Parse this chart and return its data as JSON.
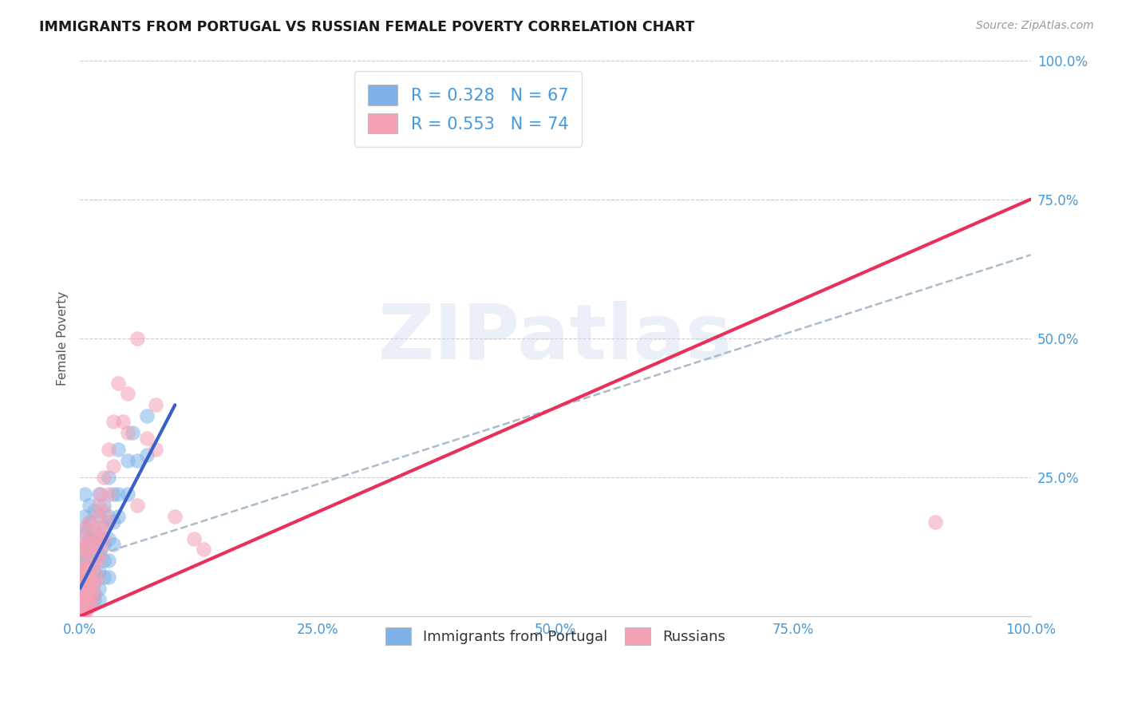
{
  "title": "IMMIGRANTS FROM PORTUGAL VS RUSSIAN FEMALE POVERTY CORRELATION CHART",
  "source": "Source: ZipAtlas.com",
  "ylabel": "Female Poverty",
  "xlim": [
    0.0,
    100.0
  ],
  "ylim": [
    0.0,
    100.0
  ],
  "xtick_positions": [
    0.0,
    25.0,
    50.0,
    75.0,
    100.0
  ],
  "xtick_labels": [
    "0.0%",
    "25.0%",
    "50.0%",
    "75.0%",
    "100.0%"
  ],
  "right_ytick_positions": [
    25.0,
    50.0,
    75.0,
    100.0
  ],
  "right_ytick_labels": [
    "25.0%",
    "50.0%",
    "75.0%",
    "100.0%"
  ],
  "blue_color": "#7fb3e8",
  "pink_color": "#f4a0b5",
  "blue_line_color": "#3a5fc8",
  "pink_line_color": "#e8305a",
  "dashed_line_color": "#aabbcc",
  "blue_R": 0.328,
  "blue_N": 67,
  "pink_R": 0.553,
  "pink_N": 74,
  "legend_label_blue": "Immigrants from Portugal",
  "legend_label_pink": "Russians",
  "watermark": "ZIPatlas",
  "background_color": "#ffffff",
  "grid_color": "#cccccc",
  "blue_scatter": [
    [
      0.5,
      22
    ],
    [
      0.5,
      18
    ],
    [
      0.5,
      15
    ],
    [
      0.5,
      12
    ],
    [
      0.5,
      10
    ],
    [
      0.5,
      8
    ],
    [
      0.5,
      7
    ],
    [
      0.5,
      6
    ],
    [
      0.5,
      5
    ],
    [
      0.5,
      4
    ],
    [
      0.5,
      3
    ],
    [
      0.5,
      2
    ],
    [
      0.7,
      16
    ],
    [
      0.7,
      13
    ],
    [
      0.7,
      10
    ],
    [
      0.7,
      8
    ],
    [
      0.7,
      6
    ],
    [
      0.7,
      4
    ],
    [
      0.7,
      3
    ],
    [
      0.7,
      2
    ],
    [
      1.0,
      20
    ],
    [
      1.0,
      17
    ],
    [
      1.0,
      14
    ],
    [
      1.0,
      11
    ],
    [
      1.0,
      9
    ],
    [
      1.0,
      7
    ],
    [
      1.0,
      5
    ],
    [
      1.0,
      3
    ],
    [
      1.0,
      2
    ],
    [
      1.5,
      19
    ],
    [
      1.5,
      15
    ],
    [
      1.5,
      12
    ],
    [
      1.5,
      10
    ],
    [
      1.5,
      8
    ],
    [
      1.5,
      6
    ],
    [
      1.5,
      4
    ],
    [
      1.5,
      3
    ],
    [
      2.0,
      22
    ],
    [
      2.0,
      18
    ],
    [
      2.0,
      14
    ],
    [
      2.0,
      11
    ],
    [
      2.0,
      8
    ],
    [
      2.0,
      5
    ],
    [
      2.0,
      3
    ],
    [
      2.5,
      20
    ],
    [
      2.5,
      16
    ],
    [
      2.5,
      13
    ],
    [
      2.5,
      10
    ],
    [
      2.5,
      7
    ],
    [
      3.0,
      25
    ],
    [
      3.0,
      18
    ],
    [
      3.0,
      14
    ],
    [
      3.0,
      10
    ],
    [
      3.0,
      7
    ],
    [
      3.5,
      22
    ],
    [
      3.5,
      17
    ],
    [
      3.5,
      13
    ],
    [
      4.0,
      30
    ],
    [
      4.0,
      22
    ],
    [
      4.0,
      18
    ],
    [
      5.0,
      28
    ],
    [
      5.0,
      22
    ],
    [
      5.5,
      33
    ],
    [
      6.0,
      28
    ],
    [
      7.0,
      36
    ],
    [
      7.0,
      29
    ],
    [
      0.5,
      1
    ]
  ],
  "pink_scatter": [
    [
      0.3,
      14
    ],
    [
      0.3,
      11
    ],
    [
      0.3,
      9
    ],
    [
      0.3,
      7
    ],
    [
      0.3,
      5
    ],
    [
      0.3,
      4
    ],
    [
      0.3,
      3
    ],
    [
      0.3,
      2
    ],
    [
      0.3,
      1
    ],
    [
      0.3,
      0.5
    ],
    [
      0.5,
      16
    ],
    [
      0.5,
      12
    ],
    [
      0.5,
      9
    ],
    [
      0.5,
      7
    ],
    [
      0.5,
      5
    ],
    [
      0.5,
      3
    ],
    [
      0.5,
      2
    ],
    [
      0.5,
      1
    ],
    [
      0.7,
      13
    ],
    [
      0.7,
      10
    ],
    [
      0.7,
      8
    ],
    [
      0.7,
      6
    ],
    [
      0.7,
      4
    ],
    [
      0.7,
      2
    ],
    [
      0.7,
      1
    ],
    [
      1.0,
      17
    ],
    [
      1.0,
      13
    ],
    [
      1.0,
      10
    ],
    [
      1.0,
      7
    ],
    [
      1.0,
      5
    ],
    [
      1.0,
      3
    ],
    [
      1.0,
      2
    ],
    [
      1.2,
      14
    ],
    [
      1.2,
      11
    ],
    [
      1.2,
      8
    ],
    [
      1.2,
      6
    ],
    [
      1.2,
      4
    ],
    [
      1.2,
      2
    ],
    [
      1.5,
      16
    ],
    [
      1.5,
      12
    ],
    [
      1.5,
      9
    ],
    [
      1.5,
      6
    ],
    [
      1.5,
      4
    ],
    [
      1.8,
      18
    ],
    [
      1.8,
      14
    ],
    [
      1.8,
      10
    ],
    [
      1.8,
      7
    ],
    [
      2.0,
      20
    ],
    [
      2.0,
      15
    ],
    [
      2.0,
      11
    ],
    [
      2.2,
      22
    ],
    [
      2.2,
      16
    ],
    [
      2.2,
      12
    ],
    [
      2.5,
      25
    ],
    [
      2.5,
      19
    ],
    [
      2.5,
      14
    ],
    [
      3.0,
      30
    ],
    [
      3.0,
      22
    ],
    [
      3.0,
      17
    ],
    [
      3.5,
      35
    ],
    [
      3.5,
      27
    ],
    [
      4.0,
      42
    ],
    [
      4.5,
      35
    ],
    [
      5.0,
      40
    ],
    [
      5.0,
      33
    ],
    [
      6.0,
      50
    ],
    [
      6.0,
      20
    ],
    [
      7.0,
      32
    ],
    [
      8.0,
      38
    ],
    [
      8.0,
      30
    ],
    [
      10.0,
      18
    ],
    [
      12.0,
      14
    ],
    [
      13.0,
      12
    ],
    [
      90.0,
      17
    ]
  ],
  "blue_trendline_x": [
    0.0,
    10.0
  ],
  "blue_trendline_y": [
    5.0,
    38.0
  ],
  "pink_trendline_x": [
    0.0,
    100.0
  ],
  "pink_trendline_y": [
    0.0,
    75.0
  ],
  "dashed_trendline_x": [
    0.0,
    100.0
  ],
  "dashed_trendline_y": [
    10.0,
    65.0
  ]
}
